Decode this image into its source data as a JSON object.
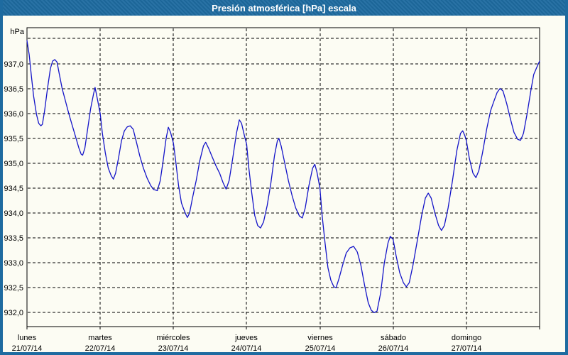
{
  "window": {
    "title": "Presión atmosférica [hPa] escala"
  },
  "colors": {
    "accent": "#1E6BA0",
    "page_bg": "#FCFCF3",
    "line": "#1414C8",
    "grid": "#000000",
    "title_text": "#FFFFFF"
  },
  "chart_data": {
    "type": "line",
    "title": "Presión atmosférica [hPa] escala",
    "unit_label": "hPa",
    "xlabel": "",
    "ylabel": "hPa",
    "grid": "dashed-both-axes",
    "legend_position": "none",
    "ylim": [
      931.72,
      937.72
    ],
    "xlim_days": [
      0,
      7
    ],
    "y_gridline_values": [
      937.5,
      937.0,
      936.5,
      936.0,
      935.5,
      935.0,
      934.5,
      934.0,
      933.5,
      933.0,
      932.5,
      932.0
    ],
    "y_ticks": [
      {
        "v": 937.0,
        "label": "937,0"
      },
      {
        "v": 936.5,
        "label": "936,5"
      },
      {
        "v": 936.0,
        "label": "936,0"
      },
      {
        "v": 935.5,
        "label": "935,5"
      },
      {
        "v": 935.0,
        "label": "935,0"
      },
      {
        "v": 934.5,
        "label": "934,5"
      },
      {
        "v": 934.0,
        "label": "934,0"
      },
      {
        "v": 933.5,
        "label": "933,5"
      },
      {
        "v": 933.0,
        "label": "933,0"
      },
      {
        "v": 932.5,
        "label": "932,5"
      },
      {
        "v": 932.0,
        "label": "932,0"
      }
    ],
    "x_days": [
      {
        "name": "lunes",
        "date": "21/07/14"
      },
      {
        "name": "martes",
        "date": "22/07/14"
      },
      {
        "name": "miércoles",
        "date": "23/07/14"
      },
      {
        "name": "jueves",
        "date": "24/07/14"
      },
      {
        "name": "viernes",
        "date": "25/07/14"
      },
      {
        "name": "sábado",
        "date": "26/07/14"
      },
      {
        "name": "domingo",
        "date": "27/07/14"
      }
    ],
    "series": [
      {
        "name": "Presión atmosférica",
        "color": "#1414C8",
        "points": [
          [
            0.0,
            937.46
          ],
          [
            0.03,
            937.18
          ],
          [
            0.06,
            936.75
          ],
          [
            0.09,
            936.35
          ],
          [
            0.13,
            935.98
          ],
          [
            0.16,
            935.8
          ],
          [
            0.19,
            935.75
          ],
          [
            0.21,
            935.78
          ],
          [
            0.24,
            936.05
          ],
          [
            0.28,
            936.5
          ],
          [
            0.32,
            936.9
          ],
          [
            0.35,
            937.05
          ],
          [
            0.38,
            937.08
          ],
          [
            0.41,
            937.03
          ],
          [
            0.44,
            936.8
          ],
          [
            0.48,
            936.5
          ],
          [
            0.52,
            936.28
          ],
          [
            0.57,
            936.0
          ],
          [
            0.62,
            935.75
          ],
          [
            0.67,
            935.5
          ],
          [
            0.71,
            935.3
          ],
          [
            0.74,
            935.18
          ],
          [
            0.76,
            935.16
          ],
          [
            0.79,
            935.3
          ],
          [
            0.83,
            935.7
          ],
          [
            0.87,
            936.1
          ],
          [
            0.91,
            936.4
          ],
          [
            0.93,
            936.52
          ],
          [
            0.96,
            936.3
          ],
          [
            1.0,
            936.0
          ],
          [
            1.03,
            935.6
          ],
          [
            1.07,
            935.2
          ],
          [
            1.11,
            934.9
          ],
          [
            1.15,
            934.75
          ],
          [
            1.18,
            934.68
          ],
          [
            1.21,
            934.8
          ],
          [
            1.25,
            935.1
          ],
          [
            1.29,
            935.45
          ],
          [
            1.33,
            935.65
          ],
          [
            1.37,
            935.73
          ],
          [
            1.41,
            935.75
          ],
          [
            1.45,
            935.68
          ],
          [
            1.49,
            935.45
          ],
          [
            1.54,
            935.15
          ],
          [
            1.59,
            934.9
          ],
          [
            1.64,
            934.7
          ],
          [
            1.69,
            934.55
          ],
          [
            1.73,
            934.47
          ],
          [
            1.78,
            934.45
          ],
          [
            1.82,
            934.65
          ],
          [
            1.86,
            935.05
          ],
          [
            1.9,
            935.5
          ],
          [
            1.93,
            935.72
          ],
          [
            1.96,
            935.62
          ],
          [
            2.0,
            935.4
          ],
          [
            2.03,
            935.05
          ],
          [
            2.07,
            934.55
          ],
          [
            2.11,
            934.2
          ],
          [
            2.14,
            934.08
          ],
          [
            2.17,
            933.97
          ],
          [
            2.19,
            933.91
          ],
          [
            2.22,
            934.0
          ],
          [
            2.26,
            934.3
          ],
          [
            2.31,
            934.65
          ],
          [
            2.36,
            935.05
          ],
          [
            2.41,
            935.35
          ],
          [
            2.44,
            935.42
          ],
          [
            2.48,
            935.3
          ],
          [
            2.53,
            935.12
          ],
          [
            2.58,
            934.95
          ],
          [
            2.63,
            934.8
          ],
          [
            2.68,
            934.6
          ],
          [
            2.72,
            934.48
          ],
          [
            2.76,
            934.65
          ],
          [
            2.81,
            935.1
          ],
          [
            2.86,
            935.6
          ],
          [
            2.9,
            935.87
          ],
          [
            2.93,
            935.8
          ],
          [
            2.97,
            935.55
          ],
          [
            3.0,
            935.38
          ],
          [
            3.03,
            934.9
          ],
          [
            3.07,
            934.4
          ],
          [
            3.11,
            933.95
          ],
          [
            3.15,
            933.75
          ],
          [
            3.19,
            933.7
          ],
          [
            3.23,
            933.82
          ],
          [
            3.28,
            934.15
          ],
          [
            3.33,
            934.6
          ],
          [
            3.38,
            935.15
          ],
          [
            3.42,
            935.45
          ],
          [
            3.44,
            935.5
          ],
          [
            3.47,
            935.35
          ],
          [
            3.52,
            935.0
          ],
          [
            3.57,
            934.65
          ],
          [
            3.62,
            934.35
          ],
          [
            3.67,
            934.1
          ],
          [
            3.72,
            933.94
          ],
          [
            3.76,
            933.9
          ],
          [
            3.8,
            934.1
          ],
          [
            3.85,
            934.55
          ],
          [
            3.9,
            934.9
          ],
          [
            3.93,
            934.98
          ],
          [
            3.96,
            934.82
          ],
          [
            4.0,
            934.5
          ],
          [
            4.03,
            933.95
          ],
          [
            4.07,
            933.4
          ],
          [
            4.11,
            932.9
          ],
          [
            4.15,
            932.65
          ],
          [
            4.19,
            932.52
          ],
          [
            4.22,
            932.5
          ],
          [
            4.26,
            932.68
          ],
          [
            4.31,
            932.95
          ],
          [
            4.36,
            933.2
          ],
          [
            4.41,
            933.3
          ],
          [
            4.46,
            933.33
          ],
          [
            4.51,
            933.22
          ],
          [
            4.56,
            932.95
          ],
          [
            4.61,
            932.55
          ],
          [
            4.66,
            932.2
          ],
          [
            4.7,
            932.05
          ],
          [
            4.74,
            932.0
          ],
          [
            4.78,
            932.03
          ],
          [
            4.83,
            932.4
          ],
          [
            4.88,
            933.0
          ],
          [
            4.93,
            933.4
          ],
          [
            4.96,
            933.53
          ],
          [
            5.0,
            933.47
          ],
          [
            5.04,
            933.15
          ],
          [
            5.09,
            932.8
          ],
          [
            5.14,
            932.6
          ],
          [
            5.18,
            932.52
          ],
          [
            5.22,
            932.6
          ],
          [
            5.27,
            932.95
          ],
          [
            5.33,
            933.45
          ],
          [
            5.39,
            933.95
          ],
          [
            5.44,
            934.3
          ],
          [
            5.48,
            934.4
          ],
          [
            5.52,
            934.3
          ],
          [
            5.57,
            934.0
          ],
          [
            5.62,
            933.75
          ],
          [
            5.66,
            933.65
          ],
          [
            5.7,
            933.75
          ],
          [
            5.75,
            934.1
          ],
          [
            5.81,
            934.65
          ],
          [
            5.87,
            935.25
          ],
          [
            5.92,
            935.6
          ],
          [
            5.95,
            935.65
          ],
          [
            5.98,
            935.55
          ],
          [
            6.0,
            935.45
          ],
          [
            6.04,
            935.1
          ],
          [
            6.09,
            934.8
          ],
          [
            6.13,
            934.71
          ],
          [
            6.17,
            934.85
          ],
          [
            6.22,
            935.2
          ],
          [
            6.28,
            935.7
          ],
          [
            6.33,
            936.05
          ],
          [
            6.37,
            936.22
          ],
          [
            6.42,
            936.42
          ],
          [
            6.46,
            936.5
          ],
          [
            6.5,
            936.45
          ],
          [
            6.55,
            936.2
          ],
          [
            6.6,
            935.9
          ],
          [
            6.65,
            935.62
          ],
          [
            6.7,
            935.48
          ],
          [
            6.74,
            935.46
          ],
          [
            6.78,
            935.6
          ],
          [
            6.83,
            936.0
          ],
          [
            6.88,
            936.45
          ],
          [
            6.92,
            936.78
          ],
          [
            6.96,
            936.92
          ],
          [
            7.0,
            937.05
          ]
        ]
      }
    ]
  }
}
